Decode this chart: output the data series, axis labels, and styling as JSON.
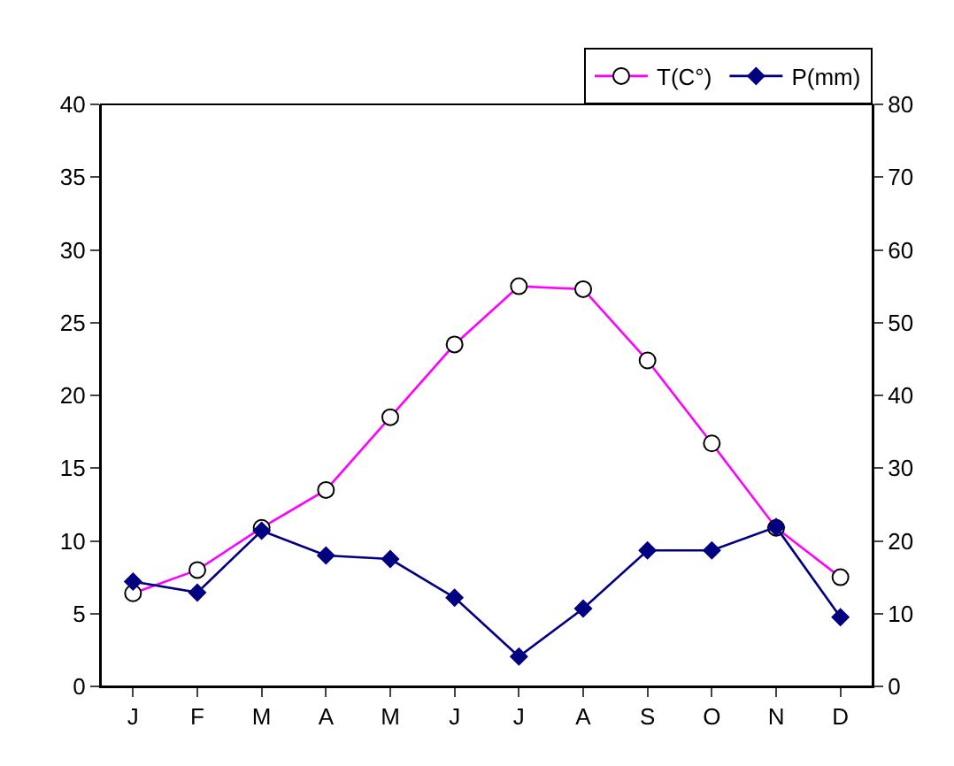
{
  "chart_data": {
    "type": "line",
    "categories": [
      "J",
      "F",
      "M",
      "A",
      "M",
      "J",
      "J",
      "A",
      "S",
      "O",
      "N",
      "D"
    ],
    "series": [
      {
        "name": "T(C°)",
        "color": "#ff00ff",
        "marker": "circle",
        "values": [
          6.4,
          8.0,
          10.9,
          13.5,
          18.5,
          23.5,
          27.5,
          27.3,
          22.4,
          16.7,
          10.9,
          7.5
        ]
      },
      {
        "name": "P(mm)",
        "color": "#000080",
        "marker": "diamond",
        "axis": "y2",
        "values": [
          14.4,
          12.9,
          21.4,
          18,
          17.5,
          12.2,
          4.1,
          10.7,
          18.7,
          18.7,
          21.9,
          9.5
        ]
      }
    ],
    "ylim": [
      0,
      40
    ],
    "yticks": [
      0,
      5,
      10,
      15,
      20,
      25,
      30,
      35,
      40
    ],
    "y2lim": [
      0,
      80
    ],
    "y2ticks": [
      0,
      10,
      20,
      30,
      40,
      50,
      60,
      70,
      80
    ],
    "legend": "top right"
  }
}
